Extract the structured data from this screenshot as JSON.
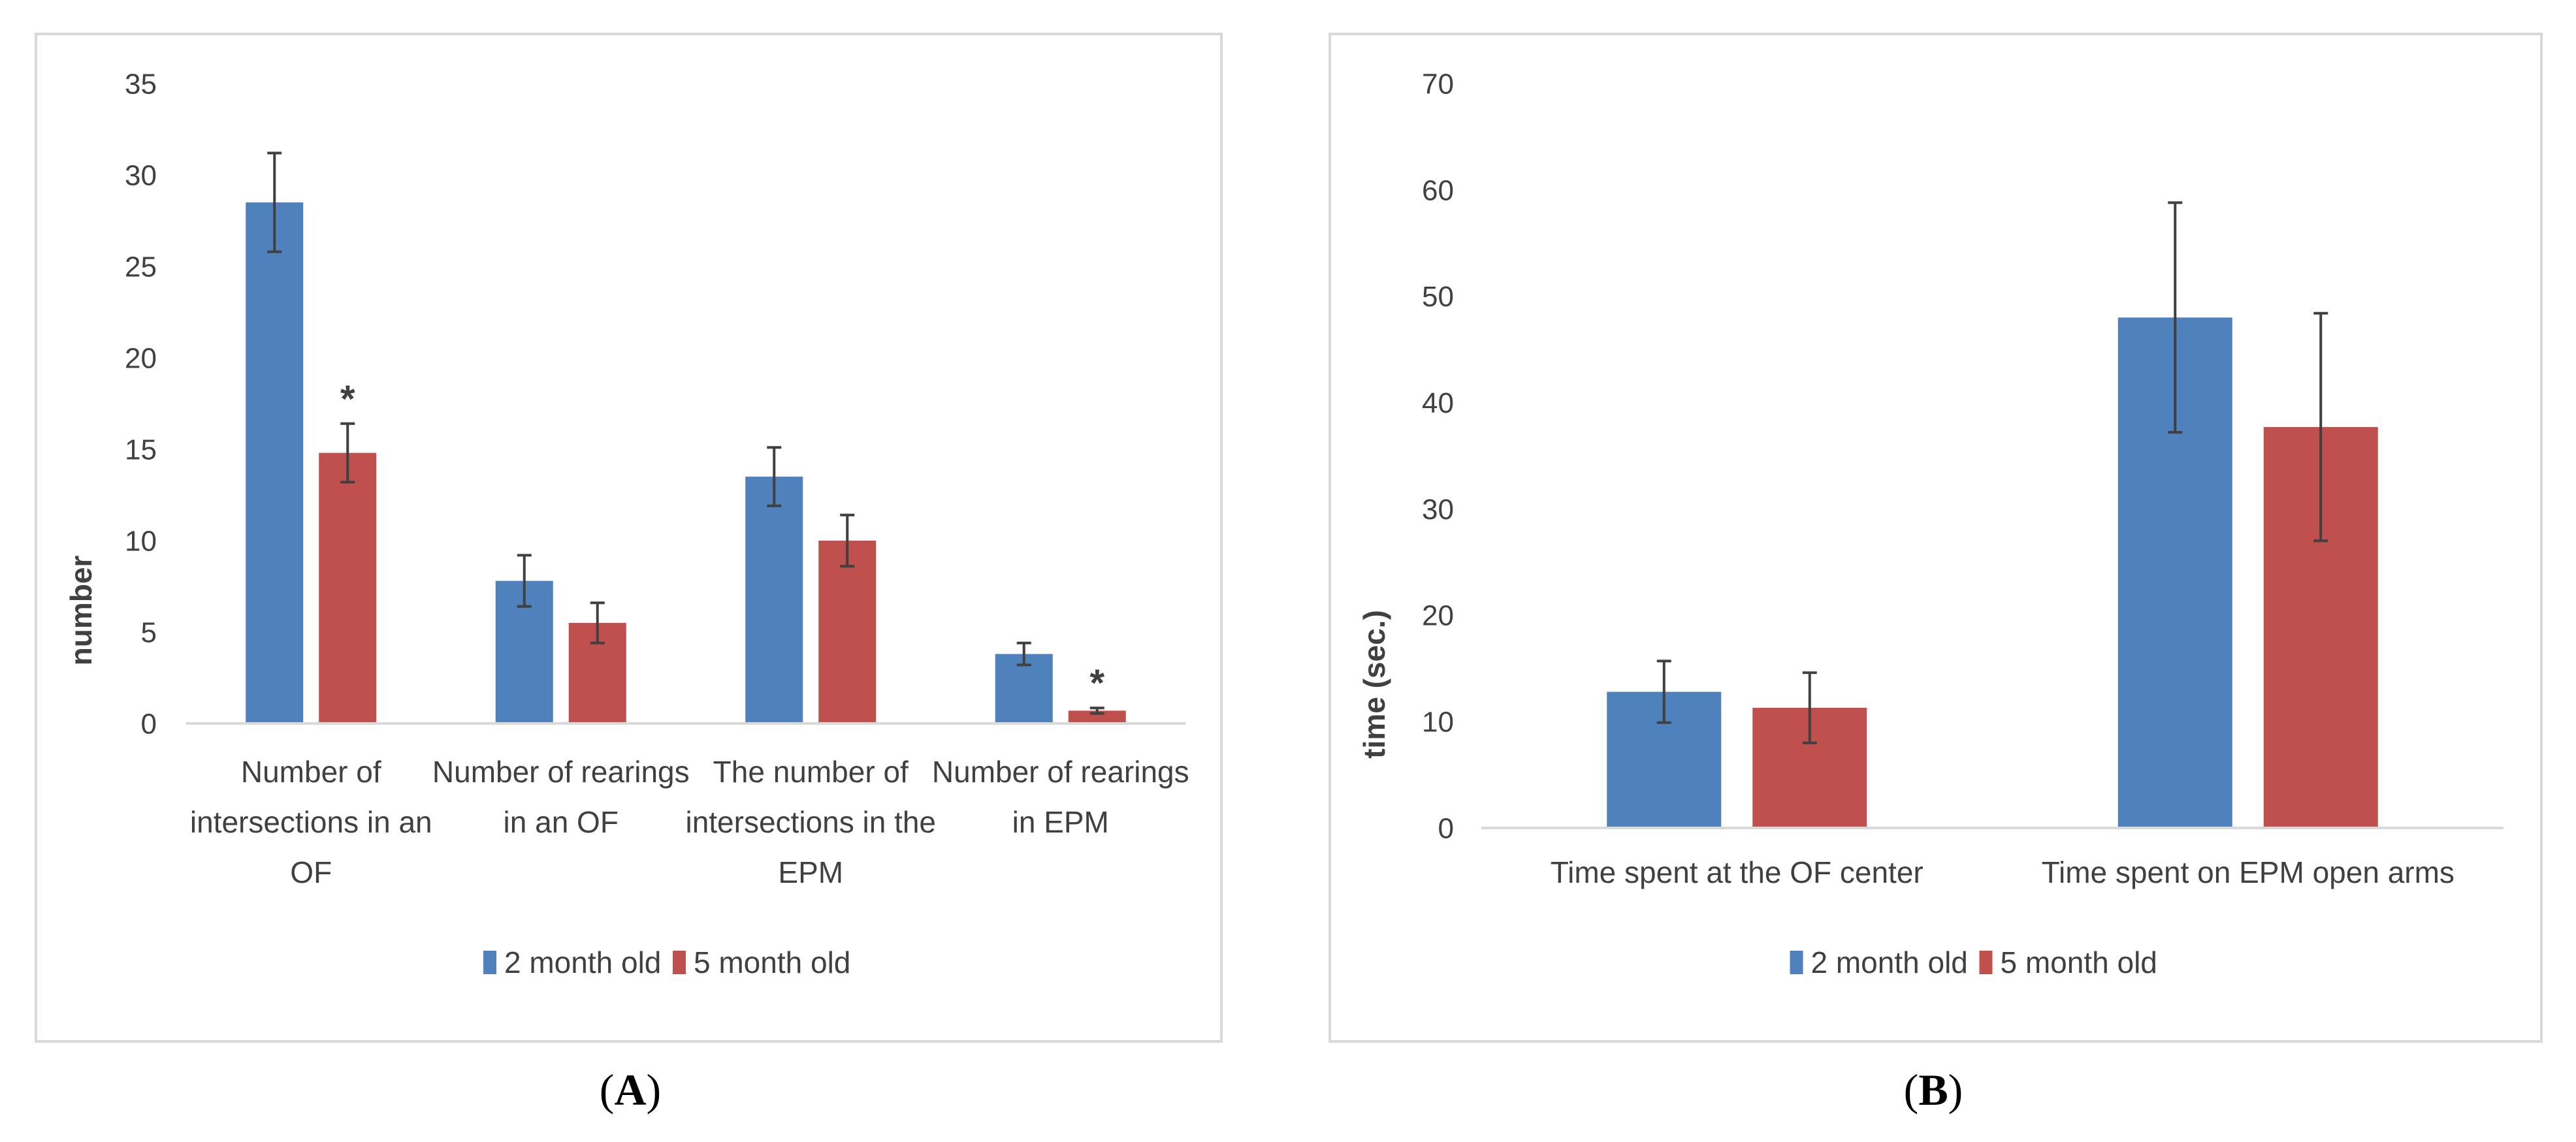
{
  "figure_labels": {
    "a": {
      "open": "(",
      "letter": "A",
      "close": ")"
    },
    "b": {
      "open": "(",
      "letter": "B",
      "close": ")"
    }
  },
  "colors": {
    "series_1": "#4f81bd",
    "series_2": "#c0504d",
    "axis": "#d9d9d9",
    "text": "#404040",
    "frame": "#d9d9d9",
    "error_bar": "#404040"
  },
  "chart_data": [
    {
      "id": "A",
      "type": "bar",
      "title": "",
      "xlabel": "",
      "ylabel": "number",
      "ylim": [
        0,
        35
      ],
      "yticks": [
        0,
        5,
        10,
        15,
        20,
        25,
        30,
        35
      ],
      "categories": [
        [
          "Number of",
          "intersections in an",
          "OF"
        ],
        [
          "Number of rearings",
          "in an OF"
        ],
        [
          "The number of",
          "intersections in the",
          "EPM"
        ],
        [
          "Number of rearings",
          "in EPM"
        ]
      ],
      "series": [
        {
          "name": "2 month old",
          "values": [
            28.5,
            7.8,
            13.5,
            3.8
          ],
          "errors": [
            2.7,
            1.4,
            1.6,
            0.6
          ]
        },
        {
          "name": "5 month old",
          "values": [
            14.8,
            5.5,
            10.0,
            0.7
          ],
          "errors": [
            1.6,
            1.1,
            1.4,
            0.15
          ]
        }
      ],
      "annotations": [
        {
          "text": "*",
          "category_index": 0,
          "series_index": 1
        },
        {
          "text": "*",
          "category_index": 3,
          "series_index": 1
        }
      ],
      "legend": "bottom-center",
      "grid": false
    },
    {
      "id": "B",
      "type": "bar",
      "title": "",
      "xlabel": "",
      "ylabel": "time (sec.)",
      "ylim": [
        0,
        70
      ],
      "yticks": [
        0,
        10,
        20,
        30,
        40,
        50,
        60,
        70
      ],
      "categories": [
        [
          "Time spent at the OF center"
        ],
        [
          "Time spent on EPM open arms"
        ]
      ],
      "series": [
        {
          "name": "2 month old",
          "values": [
            12.8,
            48.0
          ],
          "errors": [
            2.9,
            10.8
          ]
        },
        {
          "name": "5 month old",
          "values": [
            11.3,
            37.7
          ],
          "errors": [
            3.3,
            10.7
          ]
        }
      ],
      "annotations": [],
      "legend": "bottom-center",
      "grid": false
    }
  ]
}
